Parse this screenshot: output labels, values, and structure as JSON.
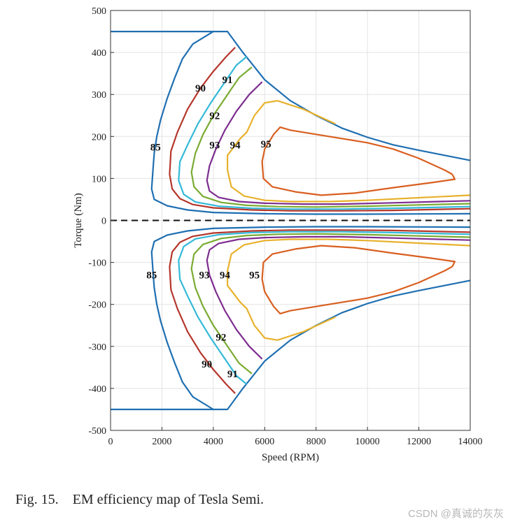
{
  "chart_data": {
    "type": "line",
    "title": "",
    "xlabel": "Speed (RPM)",
    "ylabel": "Torque (Nm)",
    "xlim": [
      0,
      14000
    ],
    "ylim": [
      -500,
      500
    ],
    "x_ticks": [
      0,
      2000,
      4000,
      6000,
      8000,
      10000,
      12000,
      14000
    ],
    "y_ticks": [
      500,
      400,
      300,
      200,
      100,
      0,
      -100,
      -200,
      -300,
      -400,
      -500
    ],
    "grid": true,
    "zero_line": "dashed",
    "series": [
      {
        "name": "boundary",
        "color": "#1f6fb2",
        "width": 2.2,
        "mirror": true,
        "x": [
          0,
          4550,
          5150,
          6000,
          7000,
          8000,
          9000,
          10000,
          11000,
          12000,
          13000,
          14000
        ],
        "y": [
          450,
          450,
          400,
          335,
          285,
          250,
          220,
          198,
          180,
          167,
          155,
          143
        ]
      },
      {
        "name": "85",
        "color": "#1f6fb2",
        "width": 2.2,
        "mirror": true,
        "x": [
          4000,
          3200,
          2800,
          2500,
          2200,
          1950,
          1800,
          1700,
          1650,
          1600,
          1700,
          2200,
          3000,
          4000,
          6000,
          8000,
          10000,
          12000,
          14000
        ],
        "y": [
          450,
          420,
          385,
          340,
          290,
          240,
          200,
          160,
          120,
          75,
          50,
          35,
          25,
          19,
          16,
          15,
          15,
          15.5,
          16
        ]
      },
      {
        "name": "90",
        "color": "#b5362b",
        "width": 2.2,
        "mirror": true,
        "x": [
          4850,
          4500,
          4000,
          3500,
          3000,
          2600,
          2350,
          2300,
          2400,
          2700,
          3200,
          4000,
          5500,
          7000,
          9000,
          11000,
          14000
        ],
        "y": [
          412,
          390,
          355,
          315,
          265,
          210,
          165,
          110,
          75,
          52,
          38,
          30,
          25,
          23,
          23,
          24,
          28
        ]
      },
      {
        "name": "91",
        "color": "#33b9d8",
        "width": 2.2,
        "mirror": true,
        "x": [
          5300,
          4900,
          4400,
          3900,
          3400,
          3000,
          2700,
          2650,
          2850,
          3300,
          4200,
          5500,
          7000,
          9000,
          11000,
          14000
        ],
        "y": [
          390,
          370,
          325,
          280,
          230,
          180,
          140,
          95,
          62,
          44,
          34,
          29,
          27,
          27,
          29,
          33
        ]
      },
      {
        "name": "92",
        "color": "#7aab33",
        "width": 2.2,
        "mirror": true,
        "x": [
          5500,
          5000,
          4500,
          4000,
          3600,
          3300,
          3150,
          3250,
          3600,
          4300,
          5300,
          6500,
          8000,
          10000,
          12000,
          14000
        ],
        "y": [
          365,
          340,
          295,
          250,
          205,
          160,
          115,
          80,
          57,
          43,
          36,
          33,
          32,
          34,
          37,
          40
        ]
      },
      {
        "name": "93",
        "color": "#7d2d8f",
        "width": 2.2,
        "mirror": true,
        "x": [
          5900,
          5400,
          4900,
          4450,
          4100,
          3850,
          3750,
          3850,
          4200,
          5000,
          6000,
          7500,
          9000,
          11000,
          14000
        ],
        "y": [
          330,
          300,
          260,
          215,
          170,
          130,
          95,
          70,
          55,
          45,
          41,
          39,
          39,
          42,
          47
        ]
      },
      {
        "name": "94",
        "color": "#e8b12c",
        "width": 2.2,
        "mirror": true,
        "x": [
          8750,
          7500,
          6500,
          6000,
          5600,
          5300,
          5050,
          4550,
          4550,
          4700,
          5200,
          6000,
          7000,
          8500,
          10000,
          12000,
          14000
        ],
        "y": [
          230,
          265,
          285,
          280,
          250,
          210,
          195,
          155,
          120,
          80,
          58,
          48,
          45,
          45,
          48,
          54,
          60
        ]
      },
      {
        "name": "95",
        "color": "#d95f20",
        "width": 2.2,
        "mirror": true,
        "x": [
          13300,
          13000,
          12000,
          11000,
          10000,
          9000,
          8000,
          7000,
          6600,
          6350,
          6000,
          5900,
          5950,
          6300,
          7200,
          8200,
          9500,
          11000,
          12500,
          13400,
          13300
        ],
        "y": [
          110,
          120,
          148,
          170,
          185,
          195,
          205,
          215,
          222,
          205,
          170,
          140,
          100,
          80,
          68,
          60,
          65,
          78,
          90,
          98,
          110
        ]
      }
    ],
    "annotations": [
      {
        "text": "85",
        "x": 1750,
        "y": 175
      },
      {
        "text": "90",
        "x": 3500,
        "y": 315
      },
      {
        "text": "91",
        "x": 4550,
        "y": 335
      },
      {
        "text": "92",
        "x": 4050,
        "y": 250
      },
      {
        "text": "93",
        "x": 4050,
        "y": 180
      },
      {
        "text": "94",
        "x": 4850,
        "y": 180
      },
      {
        "text": "95",
        "x": 6050,
        "y": 182
      },
      {
        "text": "85",
        "x": 1600,
        "y": -130
      },
      {
        "text": "93",
        "x": 3650,
        "y": -130
      },
      {
        "text": "94",
        "x": 4450,
        "y": -130
      },
      {
        "text": "95",
        "x": 5600,
        "y": -130
      },
      {
        "text": "92",
        "x": 4300,
        "y": -278
      },
      {
        "text": "90",
        "x": 3750,
        "y": -342
      },
      {
        "text": "91",
        "x": 4750,
        "y": -365
      }
    ]
  },
  "caption": "Fig. 15.    EM efficiency map of Tesla Semi.",
  "watermark": "CSDN @真诚的灰灰"
}
